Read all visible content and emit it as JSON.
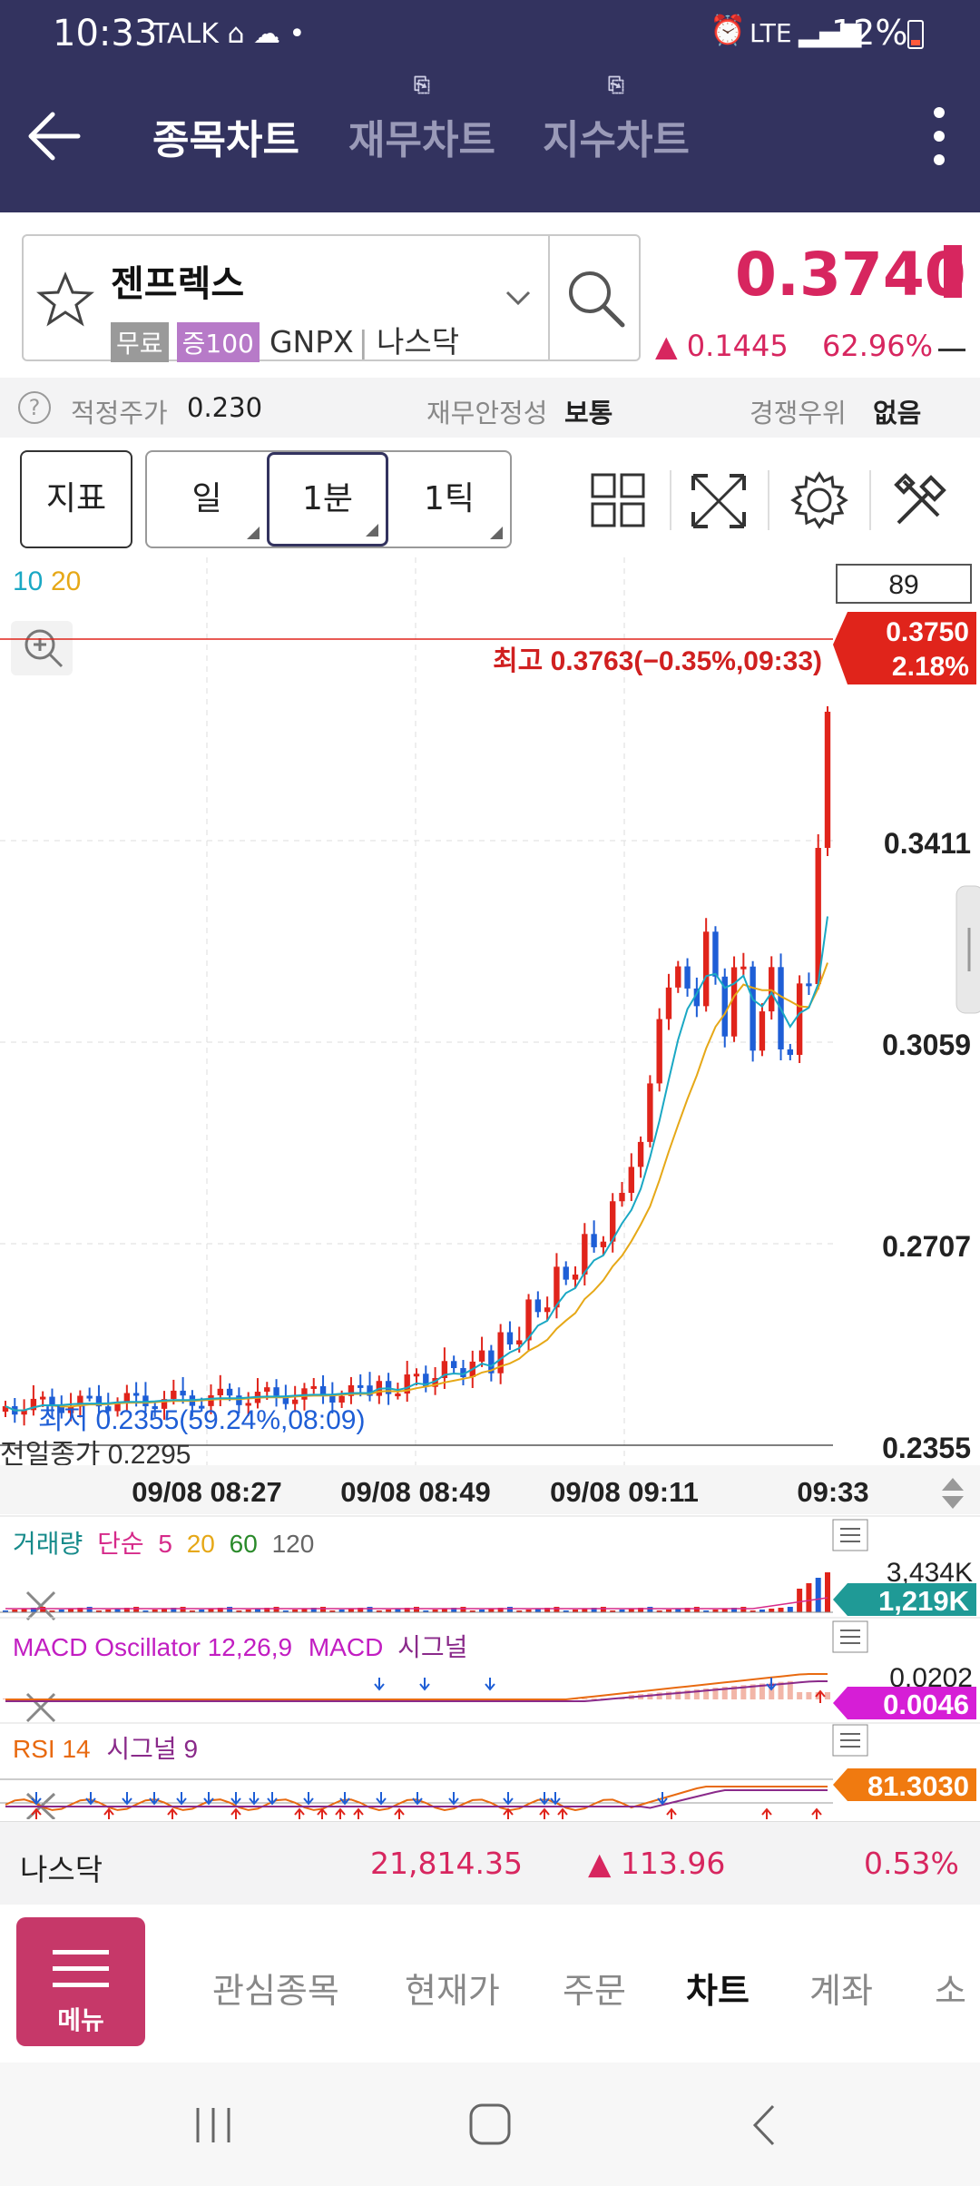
{
  "status_bar": {
    "time": "10:33",
    "notif_icons": "TALK ⌂ ☁ •",
    "signal_text": "LTE",
    "battery": "12%"
  },
  "header": {
    "tabs": [
      {
        "label": "종목차트",
        "active": true
      },
      {
        "label": "재무차트",
        "active": false
      },
      {
        "label": "지수차트",
        "active": false
      }
    ]
  },
  "stock": {
    "name": "젠프렉스",
    "badges": [
      "무료",
      "증100"
    ],
    "ticker": "GNPX",
    "market": "나스닥",
    "price": "0.3740",
    "change": "0.1445",
    "change_pct": "62.96%"
  },
  "info_row": {
    "fair_label": "적정주가",
    "fair_value": "0.230",
    "stability_label": "재무안정성",
    "stability_value": "보통",
    "competitive_label": "경쟁우위",
    "competitive_value": "없음"
  },
  "toolbar": {
    "indicator": "지표",
    "periods": [
      "일",
      "1분",
      "1틱"
    ],
    "active_period": "1분"
  },
  "chart": {
    "ma_label_a": "10",
    "ma_label_b": "20",
    "count_box": "89",
    "current_price": "0.3750",
    "current_pct": "2.18%",
    "high_label": "최고 0.3763(−0.35%,09:33)",
    "low_label": "최저 0.2355(59.24%,08:09)",
    "prev_close_label": "전일종가 0.2295",
    "y_labels": [
      "0.3411",
      "0.3059",
      "0.2707",
      "0.2355"
    ],
    "x_labels": [
      "09/08 08:27",
      "09/08 08:49",
      "09/08 09:11",
      "09:33"
    ],
    "colors": {
      "up": "#e0241b",
      "down": "#1e5ed6",
      "ma10": "#1aa8c4",
      "ma20": "#e6a817"
    }
  },
  "volume": {
    "title": "거래량",
    "kind": "단순",
    "periods": [
      "5",
      "20",
      "60",
      "120"
    ],
    "max_label": "3,434K",
    "current": "1,219K"
  },
  "macd": {
    "title": "MACD Oscillator 12,26,9",
    "line_label": "MACD",
    "signal_label": "시그널",
    "max_label": "0.0202",
    "current": "0.0046"
  },
  "rsi": {
    "title": "RSI 14",
    "signal_label": "시그널 9",
    "current": "81.3030"
  },
  "index_bar": {
    "name": "나스닥",
    "value": "21,814.35",
    "change": "113.96",
    "change_pct": "0.53%"
  },
  "bottom_nav": {
    "menu_label": "메뉴",
    "items": [
      "관심종목",
      "현재가",
      "주문",
      "차트",
      "계좌",
      "소"
    ],
    "active": "차트"
  }
}
